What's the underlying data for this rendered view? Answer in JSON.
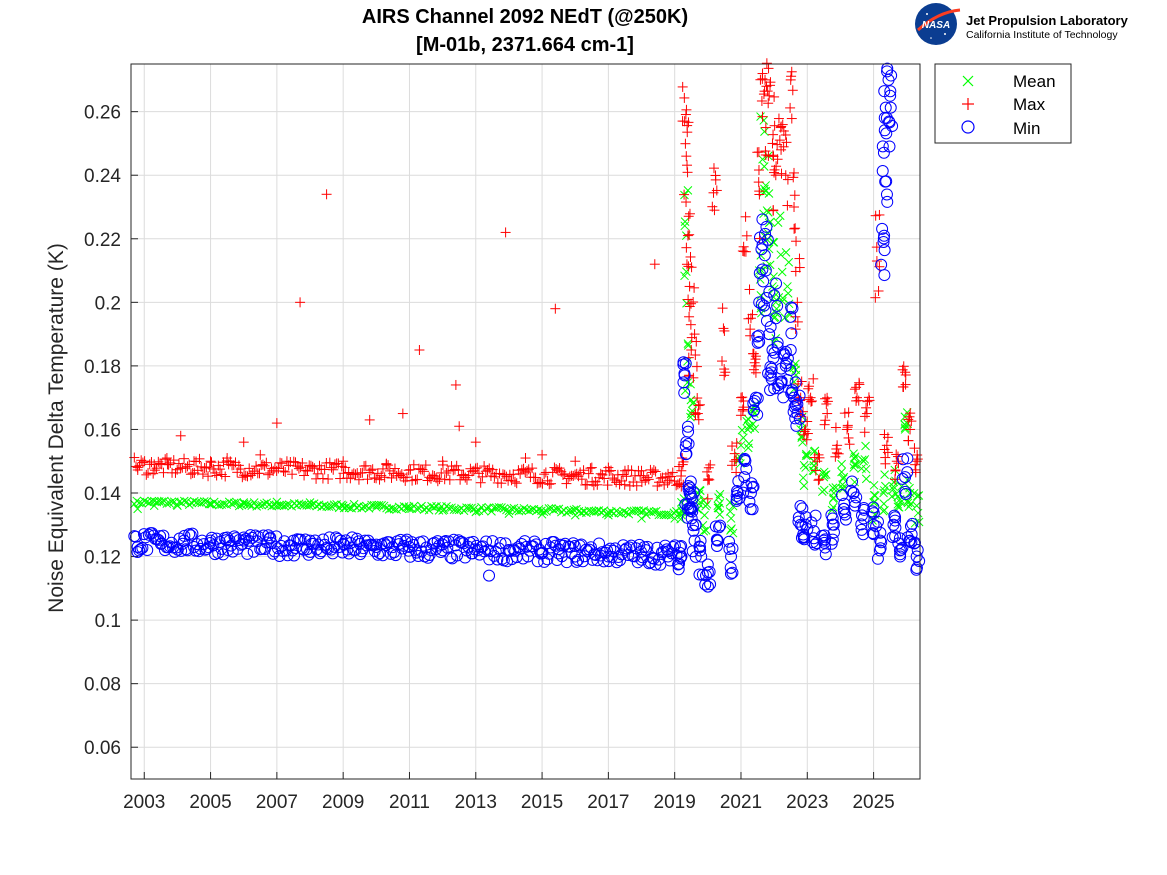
{
  "logo": {
    "badge_text": "NASA",
    "org_name": "Jet Propulsion Laboratory",
    "org_sub": "California Institute of Technology"
  },
  "chart_data": {
    "type": "scatter",
    "title": [
      "AIRS Channel 2092 NEdT (@250K)",
      "[M-01b, 2371.664 cm-1]"
    ],
    "xlabel": "",
    "ylabel": "Noise Equivalent Delta Temperature (K)",
    "xlim": [
      2002.6,
      2026.4
    ],
    "ylim": [
      0.05,
      0.275
    ],
    "xticks": [
      2003,
      2005,
      2007,
      2009,
      2011,
      2013,
      2015,
      2017,
      2019,
      2021,
      2023,
      2025
    ],
    "yticks": [
      0.06,
      0.08,
      0.1,
      0.12,
      0.14,
      0.16,
      0.18,
      0.2,
      0.22,
      0.24,
      0.26
    ],
    "grid": true,
    "legend_position": "outside top-right",
    "series": [
      {
        "name": "Mean",
        "marker": "x",
        "color": "#00ff00",
        "x": [
          2002.8,
          2003.3,
          2004,
          2005,
          2006,
          2007,
          2008,
          2009,
          2010,
          2011,
          2012,
          2013,
          2014,
          2015,
          2016,
          2017,
          2018,
          2019.0,
          2019.25,
          2019.35,
          2019.4,
          2019.5,
          2019.7,
          2019.9,
          2020.3,
          2020.7,
          2021.0,
          2021.2,
          2021.4,
          2021.55,
          2021.65,
          2021.75,
          2021.85,
          2021.95,
          2022.05,
          2022.2,
          2022.4,
          2022.6,
          2022.8,
          2022.95,
          2023.2,
          2023.5,
          2023.8,
          2024.1,
          2024.4,
          2024.7,
          2025.0,
          2025.3,
          2025.6,
          2025.8,
          2025.95,
          2026.1,
          2026.3
        ],
        "y": [
          0.135,
          0.136,
          0.136,
          0.1365,
          0.137,
          0.1372,
          0.137,
          0.136,
          0.1355,
          0.135,
          0.1345,
          0.134,
          0.1335,
          0.1333,
          0.133,
          0.133,
          0.132,
          0.132,
          0.135,
          0.221,
          0.187,
          0.165,
          0.135,
          0.133,
          0.136,
          0.132,
          0.155,
          0.16,
          0.165,
          0.21,
          0.245,
          0.235,
          0.225,
          0.205,
          0.2,
          0.215,
          0.205,
          0.175,
          0.16,
          0.148,
          0.15,
          0.145,
          0.14,
          0.145,
          0.148,
          0.15,
          0.137,
          0.14,
          0.142,
          0.138,
          0.16,
          0.14,
          0.136
        ]
      },
      {
        "name": "Max",
        "marker": "+",
        "color": "#ff0000",
        "x": [
          2002.8,
          2003.3,
          2003.7,
          2004.1,
          2004.5,
          2005,
          2005.5,
          2006,
          2006.5,
          2007,
          2007.7,
          2008.5,
          2009,
          2009.8,
          2010.3,
          2010.8,
          2011.3,
          2012,
          2012.4,
          2012.5,
          2013,
          2013.9,
          2014.5,
          2015,
          2015.4,
          2016,
          2016.5,
          2017,
          2017.5,
          2018,
          2018.4,
          2018.8,
          2019.2,
          2019.3,
          2019.35,
          2019.4,
          2019.45,
          2019.5,
          2019.6,
          2019.7,
          2020.0,
          2020.2,
          2020.5,
          2020.8,
          2021.0,
          2021.1,
          2021.3,
          2021.45,
          2021.55,
          2021.65,
          2021.75,
          2021.85,
          2021.95,
          2022.05,
          2022.2,
          2022.35,
          2022.5,
          2022.6,
          2022.7,
          2022.8,
          2022.95,
          2023.1,
          2023.3,
          2023.6,
          2023.9,
          2024.2,
          2024.5,
          2024.8,
          2025.1,
          2025.4,
          2025.7,
          2025.95,
          2026.1,
          2026.3
        ],
        "y": [
          0.148,
          0.149,
          0.149,
          0.158,
          0.15,
          0.15,
          0.151,
          0.156,
          0.152,
          0.162,
          0.2,
          0.234,
          0.15,
          0.163,
          0.149,
          0.165,
          0.185,
          0.15,
          0.174,
          0.161,
          0.156,
          0.222,
          0.151,
          0.152,
          0.198,
          0.15,
          0.148,
          0.148,
          0.147,
          0.147,
          0.212,
          0.146,
          0.147,
          0.257,
          0.246,
          0.221,
          0.205,
          0.185,
          0.19,
          0.165,
          0.144,
          0.229,
          0.191,
          0.15,
          0.17,
          0.216,
          0.195,
          0.18,
          0.235,
          0.272,
          0.255,
          0.265,
          0.25,
          0.24,
          0.255,
          0.24,
          0.27,
          0.23,
          0.2,
          0.17,
          0.16,
          0.17,
          0.15,
          0.165,
          0.155,
          0.16,
          0.17,
          0.165,
          0.213,
          0.155,
          0.15,
          0.178,
          0.16,
          0.15
        ],
        "band": {
          "x0": 2002.7,
          "x1": 2019.2,
          "y_start": 0.1485,
          "y_end": 0.1445,
          "spread": 0.0055,
          "count": 320
        }
      },
      {
        "name": "Min",
        "marker": "o",
        "color": "#0000ff",
        "x": [
          2002.8,
          2003.5,
          2004.2,
          2005,
          2005.5,
          2006,
          2006.8,
          2007.5,
          2008,
          2009,
          2009.5,
          2010,
          2011,
          2012,
          2012.9,
          2013.4,
          2014,
          2015,
          2015.5,
          2016,
          2017,
          2018,
          2018.8,
          2019.2,
          2019.3,
          2019.35,
          2019.4,
          2019.45,
          2019.5,
          2019.6,
          2019.8,
          2020,
          2020.3,
          2020.7,
          2020.9,
          2021.1,
          2021.3,
          2021.45,
          2021.55,
          2021.65,
          2021.75,
          2021.85,
          2021.95,
          2022.05,
          2022.2,
          2022.35,
          2022.5,
          2022.6,
          2022.7,
          2022.8,
          2022.95,
          2023.2,
          2023.5,
          2023.8,
          2024.1,
          2024.4,
          2024.7,
          2025.0,
          2025.2,
          2025.3,
          2025.35,
          2025.4,
          2025.45,
          2025.5,
          2025.6,
          2025.8,
          2025.95,
          2026.1,
          2026.3
        ],
        "y": [
          0.123,
          0.124,
          0.125,
          0.125,
          0.126,
          0.126,
          0.126,
          0.125,
          0.125,
          0.124,
          0.124,
          0.123,
          0.123,
          0.122,
          0.121,
          0.114,
          0.122,
          0.121,
          0.121,
          0.12,
          0.12,
          0.119,
          0.12,
          0.12,
          0.177,
          0.156,
          0.135,
          0.14,
          0.135,
          0.125,
          0.12,
          0.115,
          0.125,
          0.12,
          0.14,
          0.145,
          0.14,
          0.17,
          0.2,
          0.218,
          0.21,
          0.19,
          0.185,
          0.195,
          0.175,
          0.18,
          0.185,
          0.17,
          0.165,
          0.13,
          0.13,
          0.128,
          0.125,
          0.13,
          0.135,
          0.14,
          0.132,
          0.13,
          0.125,
          0.219,
          0.238,
          0.258,
          0.27,
          0.265,
          0.13,
          0.12,
          0.145,
          0.125,
          0.12
        ],
        "band": {
          "x0": 2002.7,
          "x1": 2019.2,
          "y_start": 0.1245,
          "y_end": 0.1205,
          "spread": 0.0065,
          "count": 340
        }
      }
    ]
  }
}
